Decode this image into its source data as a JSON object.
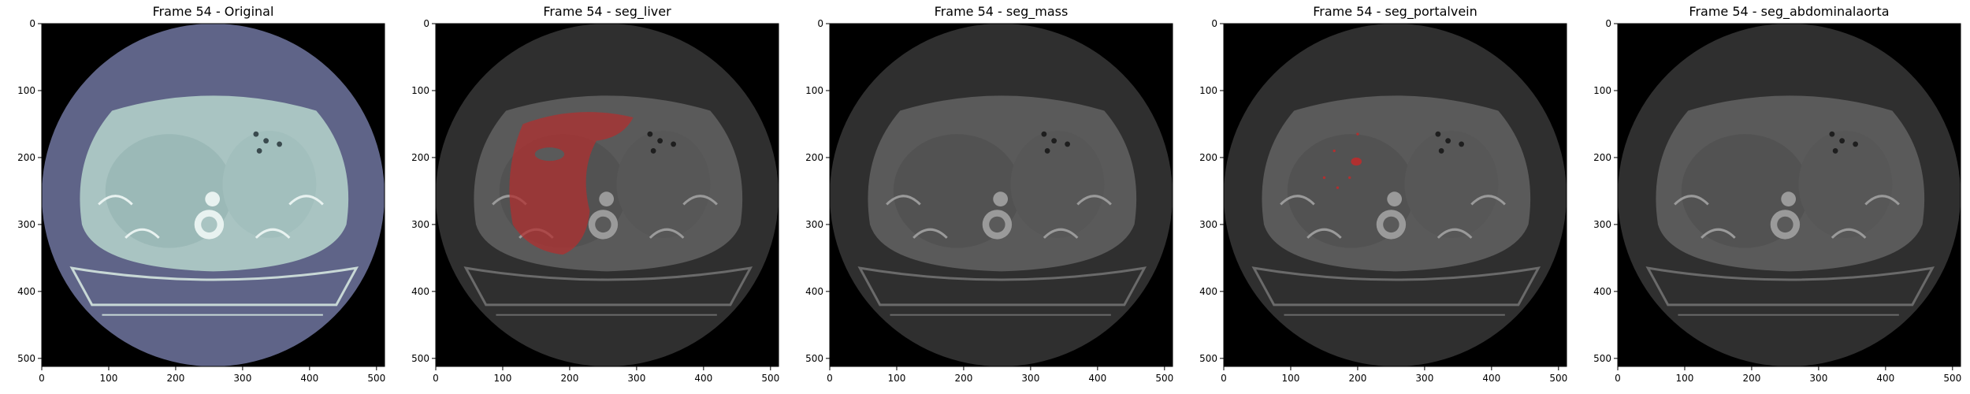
{
  "panels": [
    {
      "title": "Frame 54 - Original",
      "overlay": "none"
    },
    {
      "title": "Frame 54 - seg_liver",
      "overlay": "liver"
    },
    {
      "title": "Frame 54 - seg_mass",
      "overlay": "none"
    },
    {
      "title": "Frame 54 - seg_portalvein",
      "overlay": "portalvein"
    },
    {
      "title": "Frame 54 - seg_abdominalaorta",
      "overlay": "none"
    }
  ],
  "axes": {
    "x_ticks": [
      0,
      100,
      200,
      300,
      400,
      500
    ],
    "y_ticks": [
      0,
      100,
      200,
      300,
      400,
      500
    ],
    "xlim": [
      0,
      512
    ],
    "ylim": [
      512,
      0
    ]
  },
  "colors": {
    "original_body": "#a9c4c2",
    "original_bg": "#5f6488",
    "gray_body": "#5a5a5a",
    "gray_bg": "#2f2f2f",
    "overlay": "#b03030"
  }
}
